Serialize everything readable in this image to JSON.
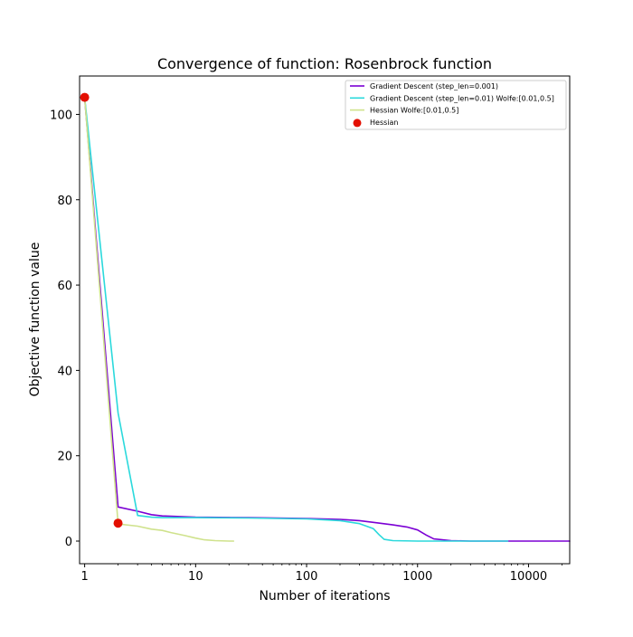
{
  "chart_data": {
    "type": "line",
    "title": "Convergence of function: Rosenbrock function",
    "xlabel": "Number of iterations",
    "ylabel": "Objective function value",
    "x_scale": "log",
    "xlim": [
      0.9,
      23500
    ],
    "ylim": [
      -5.3,
      109
    ],
    "grid": false,
    "legend_position": "top-right",
    "x_ticks": [
      1,
      10,
      100,
      1000,
      10000
    ],
    "x_tick_labels": [
      "1",
      "10",
      "100",
      "1000",
      "10000"
    ],
    "y_ticks": [
      0,
      20,
      40,
      60,
      80,
      100
    ],
    "y_tick_labels": [
      "0",
      "20",
      "40",
      "60",
      "80",
      "100"
    ],
    "series": [
      {
        "name": "Gradient Descent (step_len=0.001)",
        "style": "line",
        "color": "#7b00d4",
        "x": [
          1,
          2,
          3,
          4,
          5,
          10,
          30,
          100,
          200,
          300,
          400,
          600,
          800,
          1000,
          1200,
          1400,
          2000,
          3000,
          5000,
          10000,
          23500
        ],
        "y": [
          104,
          8,
          7,
          6.2,
          5.9,
          5.6,
          5.5,
          5.3,
          5.1,
          4.8,
          4.4,
          3.8,
          3.3,
          2.6,
          1.4,
          0.5,
          0.1,
          0.0,
          0.0,
          0.0,
          0.0
        ]
      },
      {
        "name": "Gradient Descent (step_len=0.01) Wolfe:[0.01,0.5]",
        "style": "line",
        "color": "#2bd9dc",
        "x": [
          1,
          2,
          3,
          4,
          5,
          10,
          30,
          100,
          200,
          300,
          400,
          450,
          500,
          600,
          1000,
          2000,
          6500
        ],
        "y": [
          104,
          30,
          6,
          5.6,
          5.5,
          5.5,
          5.4,
          5.2,
          4.8,
          4.1,
          2.9,
          1.5,
          0.4,
          0.1,
          0.0,
          0.0,
          0.0
        ]
      },
      {
        "name": "Hessian Wolfe:[0.01,0.5]",
        "style": "line",
        "color": "#cfe28c",
        "x": [
          1,
          2,
          3,
          4,
          5,
          6,
          8,
          10,
          12,
          15,
          20,
          22
        ],
        "y": [
          104,
          4,
          3.5,
          2.8,
          2.5,
          2,
          1.3,
          0.7,
          0.3,
          0.1,
          0.0,
          0.0
        ]
      },
      {
        "name": "Hessian",
        "style": "scatter",
        "color": "#e30f00",
        "x": [
          1,
          2
        ],
        "y": [
          104,
          4.2
        ]
      }
    ]
  }
}
